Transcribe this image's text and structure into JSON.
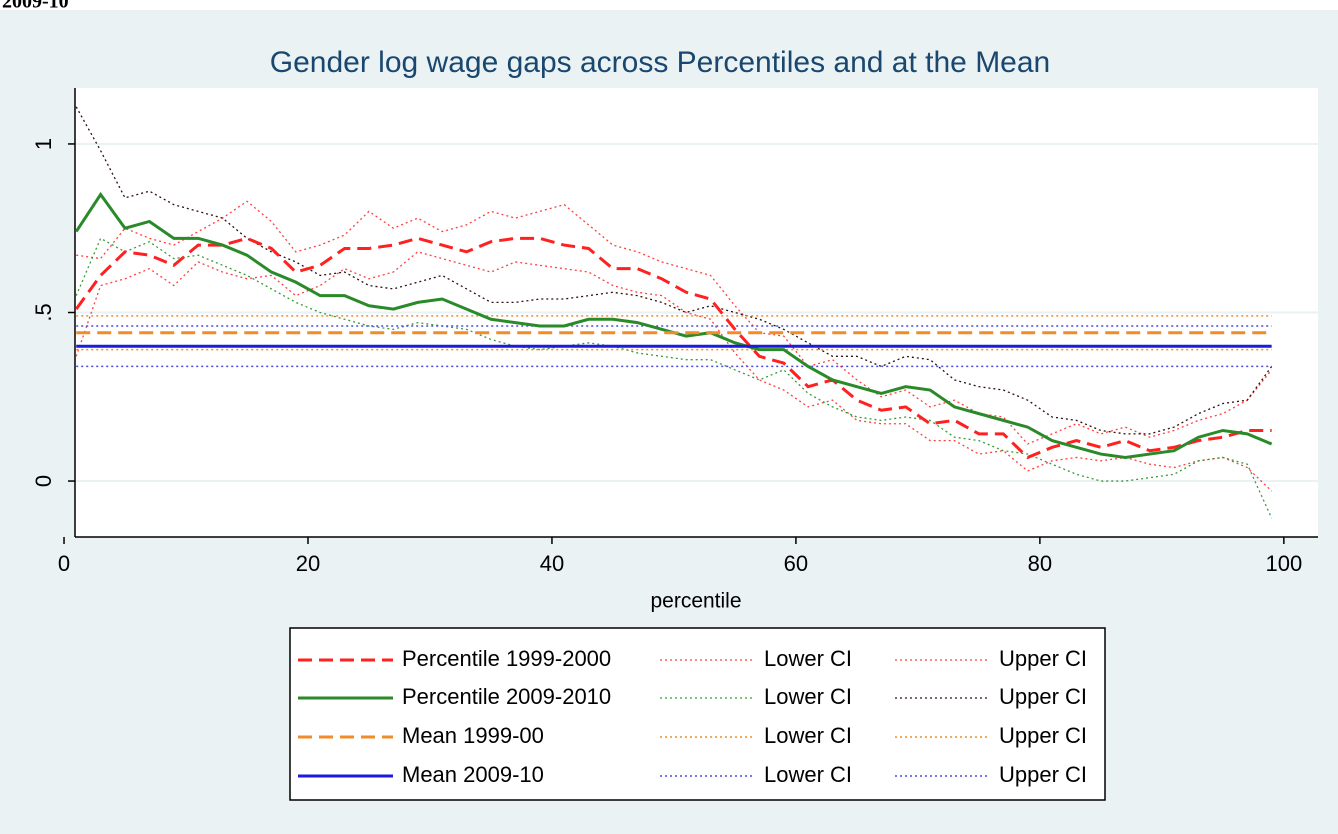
{
  "caption": "2009-10",
  "chart_data": {
    "type": "line",
    "title": "Gender log wage gaps across Percentiles and at the Mean",
    "xlabel": "percentile",
    "xlim": [
      0.9,
      102.8
    ],
    "ylim": [
      -0.166,
      1.166
    ],
    "xticks": [
      0,
      20,
      40,
      60,
      80,
      100
    ],
    "yticks": [
      0,
      {
        "value": 0.5,
        "label": ".5"
      },
      1
    ],
    "grid": true,
    "x": [
      1,
      3,
      5,
      7,
      9,
      11,
      13,
      15,
      17,
      19,
      21,
      23,
      25,
      27,
      29,
      31,
      33,
      35,
      37,
      39,
      41,
      43,
      45,
      47,
      49,
      51,
      53,
      55,
      57,
      59,
      61,
      63,
      65,
      67,
      69,
      71,
      73,
      75,
      77,
      79,
      81,
      83,
      85,
      87,
      89,
      91,
      93,
      95,
      97,
      99
    ],
    "series": [
      {
        "name": "Percentile 1999-2000",
        "color": "#ff2020",
        "style": "dashed",
        "width": 3,
        "values": [
          0.51,
          0.61,
          0.68,
          0.67,
          0.64,
          0.7,
          0.7,
          0.72,
          0.69,
          0.62,
          0.64,
          0.69,
          0.69,
          0.7,
          0.72,
          0.7,
          0.68,
          0.71,
          0.72,
          0.72,
          0.7,
          0.69,
          0.63,
          0.63,
          0.6,
          0.56,
          0.54,
          0.45,
          0.37,
          0.35,
          0.28,
          0.3,
          0.24,
          0.21,
          0.22,
          0.17,
          0.18,
          0.14,
          0.14,
          0.07,
          0.1,
          0.12,
          0.1,
          0.12,
          0.09,
          0.1,
          0.12,
          0.13,
          0.15,
          0.15
        ]
      },
      {
        "name": "Lower CI",
        "color": "#ff4040",
        "style": "dotted",
        "width": 1.3,
        "values": [
          0.37,
          0.58,
          0.6,
          0.63,
          0.58,
          0.65,
          0.62,
          0.6,
          0.61,
          0.55,
          0.58,
          0.63,
          0.6,
          0.62,
          0.68,
          0.66,
          0.64,
          0.62,
          0.65,
          0.64,
          0.63,
          0.62,
          0.58,
          0.56,
          0.55,
          0.5,
          0.48,
          0.38,
          0.3,
          0.27,
          0.22,
          0.24,
          0.18,
          0.17,
          0.17,
          0.12,
          0.12,
          0.08,
          0.09,
          0.03,
          0.06,
          0.07,
          0.06,
          0.07,
          0.05,
          0.04,
          0.06,
          0.07,
          0.04,
          -0.03
        ]
      },
      {
        "name": "Upper CI",
        "color": "#ff4040",
        "style": "dotted",
        "width": 1.3,
        "values": [
          0.67,
          0.66,
          0.75,
          0.72,
          0.7,
          0.74,
          0.78,
          0.83,
          0.77,
          0.68,
          0.7,
          0.73,
          0.8,
          0.75,
          0.78,
          0.74,
          0.76,
          0.8,
          0.78,
          0.8,
          0.82,
          0.76,
          0.7,
          0.68,
          0.65,
          0.63,
          0.61,
          0.52,
          0.44,
          0.43,
          0.34,
          0.36,
          0.3,
          0.25,
          0.27,
          0.22,
          0.24,
          0.2,
          0.19,
          0.11,
          0.14,
          0.17,
          0.14,
          0.16,
          0.13,
          0.15,
          0.18,
          0.2,
          0.24,
          0.33
        ]
      },
      {
        "name": "Percentile 2009-2010",
        "color": "#2a8a2a",
        "style": "solid",
        "width": 3,
        "values": [
          0.74,
          0.85,
          0.75,
          0.77,
          0.72,
          0.72,
          0.7,
          0.67,
          0.62,
          0.59,
          0.55,
          0.55,
          0.52,
          0.51,
          0.53,
          0.54,
          0.51,
          0.48,
          0.47,
          0.46,
          0.46,
          0.48,
          0.48,
          0.47,
          0.45,
          0.43,
          0.44,
          0.41,
          0.39,
          0.39,
          0.34,
          0.3,
          0.28,
          0.26,
          0.28,
          0.27,
          0.22,
          0.2,
          0.18,
          0.16,
          0.12,
          0.1,
          0.08,
          0.07,
          0.08,
          0.09,
          0.13,
          0.15,
          0.14,
          0.11
        ]
      },
      {
        "name": "Lower CI",
        "color": "#3a9a3a",
        "style": "dotted",
        "width": 1.3,
        "values": [
          0.55,
          0.72,
          0.68,
          0.71,
          0.66,
          0.67,
          0.64,
          0.61,
          0.57,
          0.53,
          0.5,
          0.48,
          0.46,
          0.45,
          0.47,
          0.46,
          0.45,
          0.42,
          0.4,
          0.39,
          0.4,
          0.41,
          0.4,
          0.38,
          0.37,
          0.36,
          0.36,
          0.33,
          0.3,
          0.33,
          0.26,
          0.22,
          0.19,
          0.18,
          0.19,
          0.18,
          0.13,
          0.12,
          0.09,
          0.08,
          0.05,
          0.02,
          0.0,
          0.0,
          0.01,
          0.02,
          0.06,
          0.07,
          0.05,
          -0.11
        ]
      },
      {
        "name": "Upper CI",
        "color": "#301010",
        "style": "dotted",
        "width": 1.3,
        "values": [
          1.11,
          0.98,
          0.84,
          0.86,
          0.82,
          0.8,
          0.78,
          0.72,
          0.68,
          0.65,
          0.61,
          0.62,
          0.58,
          0.57,
          0.59,
          0.61,
          0.57,
          0.53,
          0.53,
          0.54,
          0.54,
          0.55,
          0.56,
          0.55,
          0.53,
          0.5,
          0.52,
          0.5,
          0.48,
          0.45,
          0.41,
          0.37,
          0.37,
          0.34,
          0.37,
          0.36,
          0.3,
          0.28,
          0.27,
          0.24,
          0.19,
          0.18,
          0.15,
          0.14,
          0.14,
          0.16,
          0.2,
          0.23,
          0.24,
          0.34
        ]
      },
      {
        "name": "Mean 1999-00",
        "color": "#f28c28",
        "style": "dashed",
        "width": 3,
        "x": [
          1,
          99
        ],
        "values": [
          0.44,
          0.44
        ]
      },
      {
        "name": "Lower CI",
        "color": "#f28c28",
        "style": "dotted",
        "width": 1.5,
        "x": [
          1,
          99
        ],
        "values": [
          0.39,
          0.39
        ]
      },
      {
        "name": "Upper CI",
        "color": "#f28c28",
        "style": "dotted",
        "width": 1.5,
        "x": [
          1,
          99
        ],
        "values": [
          0.49,
          0.49
        ]
      },
      {
        "name": "Mean 2009-10",
        "color": "#1a1ae0",
        "style": "solid",
        "width": 3,
        "x": [
          1,
          99
        ],
        "values": [
          0.4,
          0.4
        ]
      },
      {
        "name": "Lower CI",
        "color": "#4a4ae0",
        "style": "dotted",
        "width": 1.5,
        "x": [
          1,
          99
        ],
        "values": [
          0.34,
          0.34
        ]
      },
      {
        "name": "Upper CI",
        "color": "#4a4ae0",
        "style": "dotted",
        "width": 1.5,
        "x": [
          1,
          99
        ],
        "values": [
          0.46,
          0.46
        ]
      }
    ]
  }
}
